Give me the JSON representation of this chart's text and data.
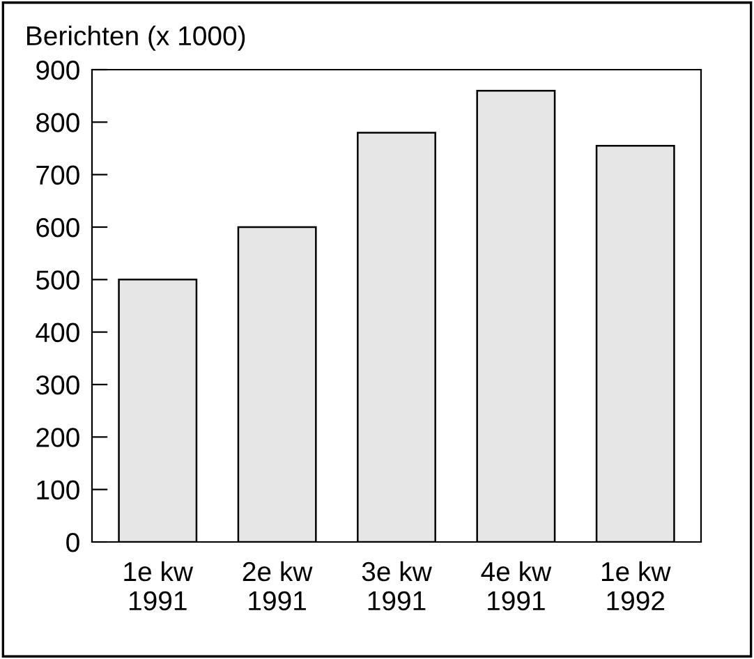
{
  "chart_data": {
    "type": "bar",
    "ylabel": "Berichten (x 1000)",
    "categories": [
      "1e kw\n1991",
      "2e kw\n1991",
      "3e kw\n1991",
      "4e kw\n1991",
      "1e kw\n1992"
    ],
    "values": [
      500,
      600,
      780,
      860,
      755
    ],
    "color": "#e6e6e6",
    "ylim": [
      0,
      900
    ],
    "yticks": [
      0,
      100,
      200,
      300,
      400,
      500,
      600,
      700,
      800,
      900
    ],
    "grid": false,
    "legend": false
  }
}
